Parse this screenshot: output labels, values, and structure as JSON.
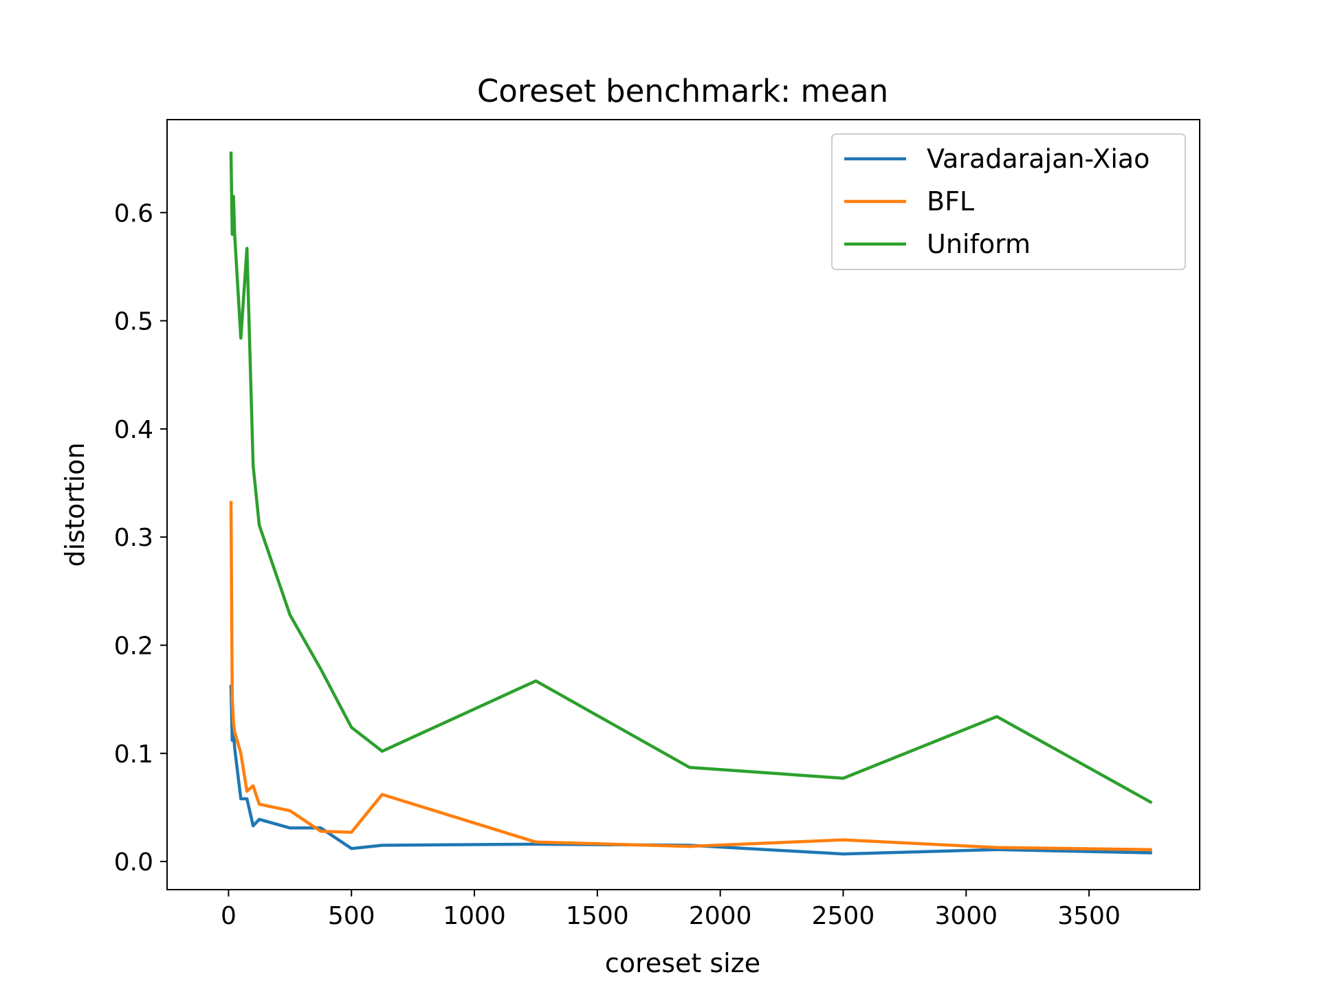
{
  "chart_data": {
    "type": "line",
    "title": "Coreset benchmark: mean",
    "xlabel": "coreset size",
    "ylabel": "distortion",
    "xlim": [
      -250,
      3950
    ],
    "ylim": [
      -0.026,
      0.686
    ],
    "xticks": [
      0,
      500,
      1000,
      1500,
      2000,
      2500,
      3000,
      3500
    ],
    "yticks": [
      0.0,
      0.1,
      0.2,
      0.3,
      0.4,
      0.5,
      0.6
    ],
    "xtick_labels": [
      "0",
      "500",
      "1000",
      "1500",
      "2000",
      "2500",
      "3000",
      "3500"
    ],
    "ytick_labels": [
      "0.0",
      "0.1",
      "0.2",
      "0.3",
      "0.4",
      "0.5",
      "0.6"
    ],
    "grid": false,
    "legend_position": "upper right",
    "series": [
      {
        "name": "Varadarajan-Xiao",
        "color": "#1f77b4",
        "x": [
          10,
          15,
          20,
          25,
          50,
          75,
          100,
          125,
          250,
          375,
          500,
          625,
          1250,
          1875,
          2500,
          3125,
          3750
        ],
        "y": [
          0.162,
          0.112,
          0.12,
          0.105,
          0.058,
          0.058,
          0.033,
          0.039,
          0.031,
          0.031,
          0.012,
          0.015,
          0.016,
          0.015,
          0.007,
          0.011,
          0.008
        ]
      },
      {
        "name": "BFL",
        "color": "#ff7f0e",
        "x": [
          10,
          15,
          20,
          25,
          50,
          75,
          100,
          125,
          250,
          375,
          500,
          625,
          1250,
          1875,
          2500,
          3125,
          3750
        ],
        "y": [
          0.332,
          0.15,
          0.128,
          0.12,
          0.1,
          0.065,
          0.07,
          0.053,
          0.047,
          0.028,
          0.027,
          0.062,
          0.018,
          0.014,
          0.02,
          0.013,
          0.011
        ]
      },
      {
        "name": "Uniform",
        "color": "#2ca02c",
        "x": [
          10,
          15,
          20,
          25,
          50,
          75,
          100,
          125,
          250,
          375,
          500,
          625,
          1250,
          1875,
          2500,
          3125,
          3750
        ],
        "y": [
          0.655,
          0.58,
          0.615,
          0.58,
          0.484,
          0.567,
          0.366,
          0.311,
          0.228,
          0.178,
          0.124,
          0.102,
          0.167,
          0.087,
          0.077,
          0.134,
          0.055
        ]
      }
    ]
  }
}
